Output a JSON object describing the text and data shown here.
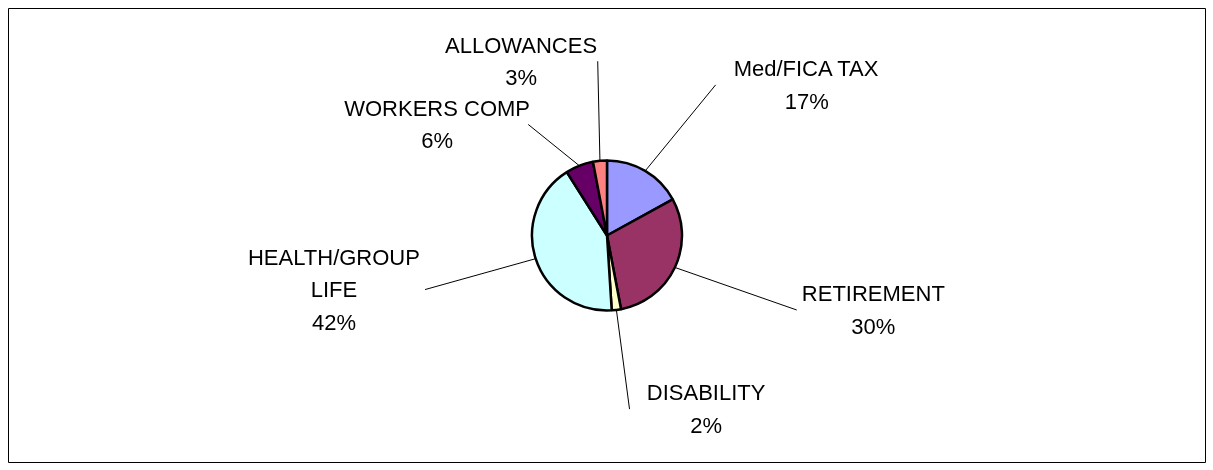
{
  "chart_data": {
    "type": "pie",
    "categories": [
      "Med/FICA TAX",
      "RETIREMENT",
      "DISABILITY",
      "HEALTH/GROUP LIFE",
      "WORKERS COMP",
      "ALLOWANCES"
    ],
    "values": [
      17,
      30,
      2,
      42,
      6,
      3
    ],
    "colors": [
      "#9999ff",
      "#993366",
      "#ffffcc",
      "#ccffff",
      "#660066",
      "#ff8080"
    ],
    "value_labels": [
      "17%",
      "30%",
      "2%",
      "42%",
      "6%",
      "3%"
    ]
  }
}
